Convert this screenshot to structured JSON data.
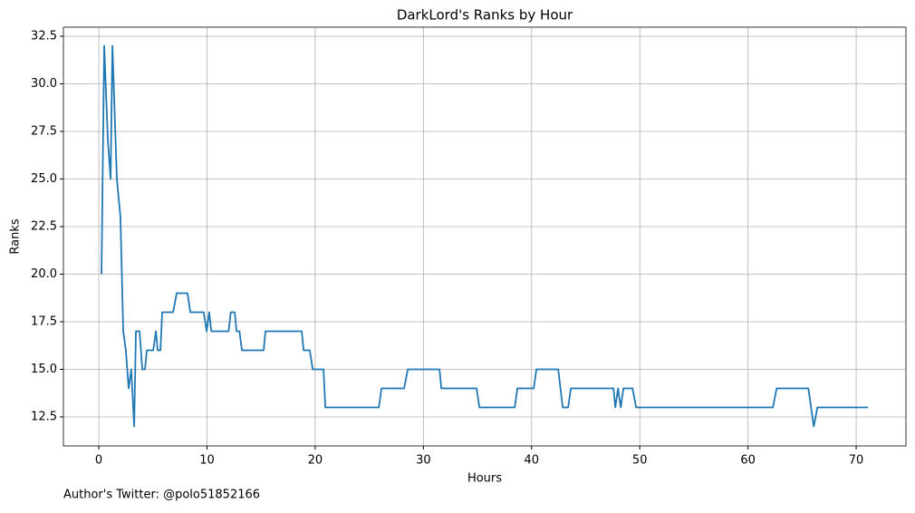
{
  "chart_data": {
    "type": "line",
    "title": "DarkLord's Ranks by Hour",
    "xlabel": "Hours",
    "ylabel": "Ranks",
    "footer": "Author's Twitter: @polo51852166",
    "x": [
      0.25,
      0.5,
      0.84,
      1.09,
      1.26,
      1.67,
      2.0,
      2.26,
      2.5,
      2.76,
      3.0,
      3.27,
      3.43,
      3.77,
      4.02,
      4.27,
      4.44,
      5.03,
      5.28,
      5.44,
      5.7,
      5.86,
      6.87,
      7.2,
      8.2,
      8.46,
      9.7,
      9.97,
      10.2,
      10.4,
      12.0,
      12.2,
      12.56,
      12.73,
      13.0,
      13.23,
      15.24,
      15.4,
      18.76,
      18.93,
      19.5,
      19.77,
      20.77,
      20.94,
      25.88,
      26.13,
      28.22,
      28.56,
      31.49,
      31.66,
      34.92,
      35.18,
      38.44,
      38.69,
      40.2,
      40.45,
      42.46,
      42.88,
      43.38,
      43.63,
      47.57,
      47.74,
      47.99,
      48.24,
      48.49,
      49.33,
      49.66,
      62.31,
      62.65,
      65.58,
      66.08,
      66.42,
      71.1
    ],
    "series": [
      {
        "name": "DarkLord",
        "color": "#1f77b4",
        "values": [
          20,
          32,
          27,
          25,
          32,
          25,
          23,
          17,
          16,
          14,
          15,
          12,
          17,
          17,
          15,
          15,
          16,
          16,
          17,
          16,
          16,
          18,
          18,
          19,
          19,
          18,
          18,
          17,
          18,
          17,
          17,
          18,
          18,
          17,
          17,
          16,
          16,
          17,
          17,
          16,
          16,
          15,
          15,
          13,
          13,
          14,
          14,
          15,
          15,
          14,
          14,
          13,
          13,
          14,
          14,
          15,
          15,
          13,
          13,
          14,
          14,
          13,
          14,
          13,
          14,
          14,
          13,
          13,
          14,
          14,
          12,
          13,
          13
        ]
      }
    ],
    "xlim": [
      -3.27,
      74.6
    ],
    "ylim": [
      10.975,
      32.975
    ],
    "xticks": [
      0,
      10,
      20,
      30,
      40,
      50,
      60,
      70
    ],
    "yticks": [
      12.5,
      {
        "value": 15,
        "label": "15.0"
      },
      17.5,
      {
        "value": 20,
        "label": "20.0"
      },
      22.5,
      {
        "value": 25,
        "label": "25.0"
      },
      27.5,
      {
        "value": 30,
        "label": "30.0"
      },
      32.5
    ],
    "grid": true
  }
}
